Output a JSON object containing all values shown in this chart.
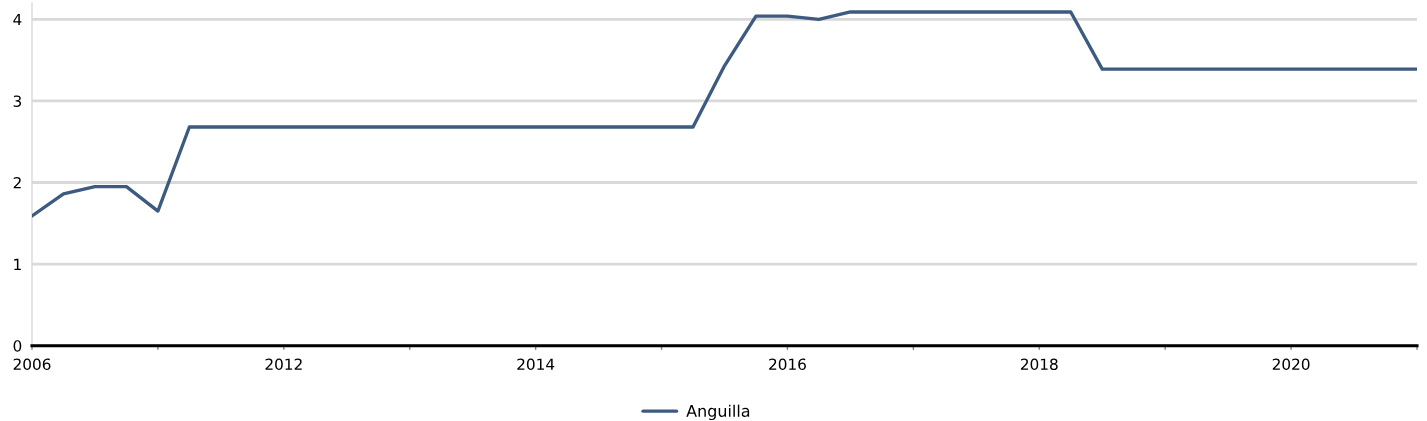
{
  "chart_data": {
    "type": "line",
    "categories": [
      "2006",
      null,
      null,
      null,
      null,
      null,
      null,
      null,
      "2012",
      null,
      null,
      null,
      null,
      null,
      null,
      null,
      "2014",
      null,
      null,
      null,
      null,
      null,
      null,
      null,
      "2016",
      null,
      null,
      null,
      null,
      null,
      null,
      null,
      "2018",
      null,
      null,
      null,
      null,
      null,
      null,
      null,
      "2020",
      null,
      null,
      null,
      null
    ],
    "series": [
      {
        "name": "Anguilla",
        "color": "#3d5a80",
        "values": [
          1.59,
          1.86,
          1.95,
          1.95,
          1.65,
          2.68,
          2.68,
          2.68,
          2.68,
          2.68,
          2.68,
          2.68,
          2.68,
          2.68,
          2.68,
          2.68,
          2.68,
          2.68,
          2.68,
          2.68,
          2.68,
          2.68,
          3.43,
          4.04,
          4.04,
          4.0,
          4.09,
          4.09,
          4.09,
          4.09,
          4.09,
          4.09,
          4.09,
          4.09,
          3.39,
          3.39,
          3.39,
          3.39,
          3.39,
          3.39,
          3.39,
          3.39,
          3.39,
          3.39,
          3.39
        ]
      }
    ],
    "ylim": [
      0,
      4.2
    ],
    "yticks": [
      0,
      1,
      2,
      3,
      4
    ],
    "grid": "y",
    "legend": "bottom",
    "marker": "none",
    "line_style": "solid"
  }
}
